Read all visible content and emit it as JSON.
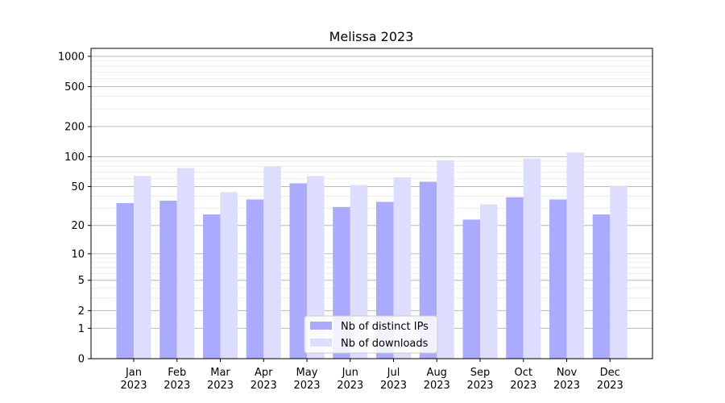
{
  "chart_data": {
    "type": "bar",
    "title": "Melissa 2023",
    "xlabel": "",
    "ylabel": "",
    "yscale": "symlog",
    "ylim": [
      0,
      1200
    ],
    "yticks": [
      0,
      1,
      2,
      5,
      10,
      20,
      50,
      100,
      200,
      500,
      1000
    ],
    "ytick_labels": [
      "0",
      "1",
      "2",
      "5",
      "10",
      "20",
      "50",
      "100",
      "200",
      "500",
      "1000"
    ],
    "grid": true,
    "legend_position": "lower-center",
    "categories": [
      "Jan\n2023",
      "Feb\n2023",
      "Mar\n2023",
      "Apr\n2023",
      "May\n2023",
      "Jun\n2023",
      "Jul\n2023",
      "Aug\n2023",
      "Sep\n2023",
      "Oct\n2023",
      "Nov\n2023",
      "Dec\n2023"
    ],
    "series": [
      {
        "name": "Nb of distinct IPs",
        "color": "#aaaaff",
        "values": [
          34,
          36,
          26,
          37,
          54,
          31,
          35,
          56,
          23,
          39,
          37,
          26
        ]
      },
      {
        "name": "Nb of downloads",
        "color": "#ddddff",
        "values": [
          64,
          77,
          44,
          80,
          64,
          52,
          62,
          92,
          33,
          96,
          110,
          51
        ]
      }
    ]
  }
}
